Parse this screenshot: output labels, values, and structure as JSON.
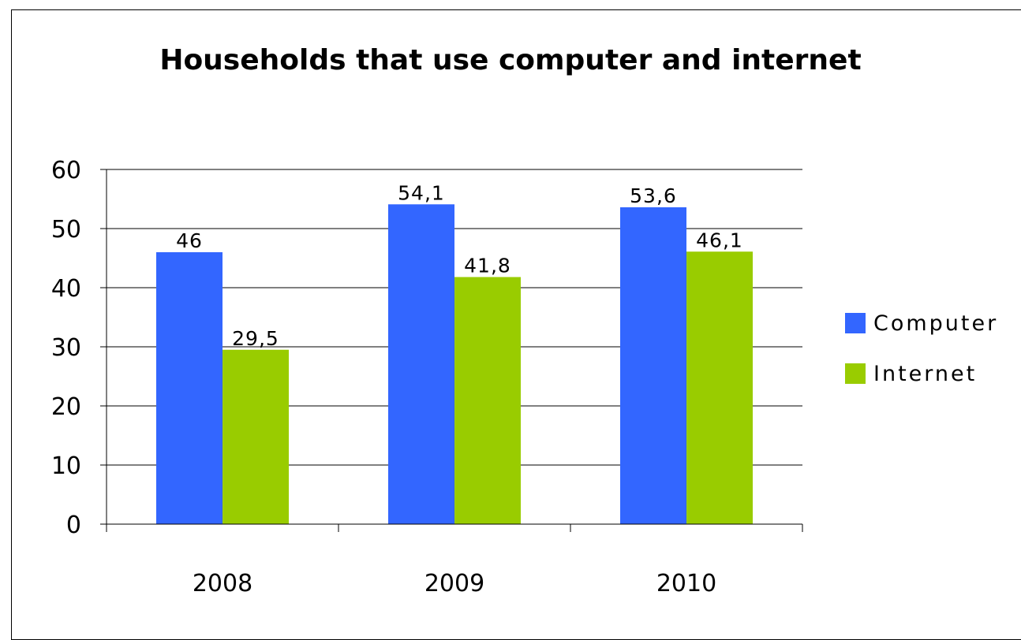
{
  "chart_data": {
    "type": "bar",
    "title": "Households that use computer and internet",
    "categories": [
      "2008",
      "2009",
      "2010"
    ],
    "series": [
      {
        "name": "Computer",
        "values": [
          46,
          54.1,
          53.6
        ],
        "labels": [
          "46",
          "54,1",
          "53,6"
        ],
        "color": "#3366ff"
      },
      {
        "name": "Internet",
        "values": [
          29.5,
          41.8,
          46.1
        ],
        "labels": [
          "29,5",
          "41,8",
          "46,1"
        ],
        "color": "#99cc00"
      }
    ],
    "ylim": [
      0,
      60
    ],
    "yticks": [
      "0",
      "10",
      "20",
      "30",
      "40",
      "50",
      "60"
    ],
    "xlabel": "",
    "ylabel": "",
    "grid": true,
    "legend_position": "right"
  }
}
